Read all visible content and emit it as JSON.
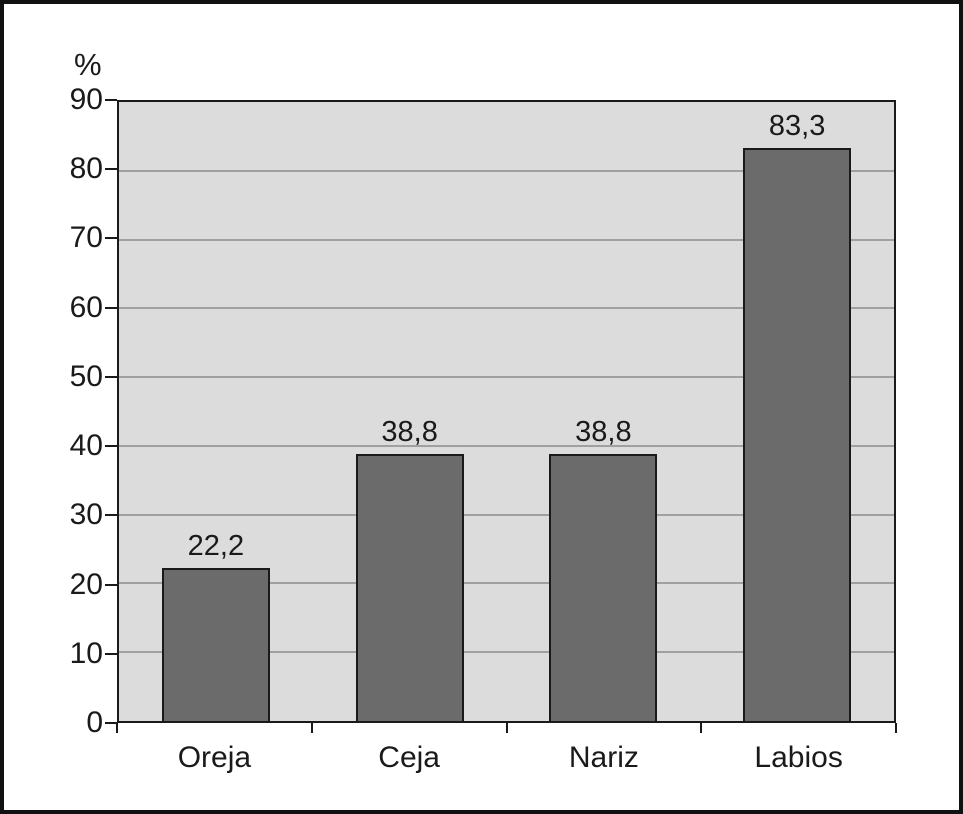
{
  "chart_data": {
    "type": "bar",
    "title": "",
    "ylabel": "%",
    "xlabel": "",
    "categories": [
      "Oreja",
      "Ceja",
      "Nariz",
      "Labios"
    ],
    "values": [
      22.2,
      38.8,
      38.8,
      83.3
    ],
    "value_labels": [
      "22,2",
      "38,8",
      "38,8",
      "83,3"
    ],
    "ylim": [
      0,
      90
    ],
    "yticks": [
      0,
      10,
      20,
      30,
      40,
      50,
      60,
      70,
      80,
      90
    ],
    "grid": "horizontal",
    "legend": "none",
    "colors": {
      "background": "#ffffff",
      "frame": "#111111",
      "plot_bg": "#dcdcdc",
      "gridline": "#a0a0a0",
      "bar_fill": "#6b6b6b",
      "bar_border": "#1a1a1a",
      "axis": "#1a1a1a",
      "text": "#1a1a1a"
    }
  }
}
